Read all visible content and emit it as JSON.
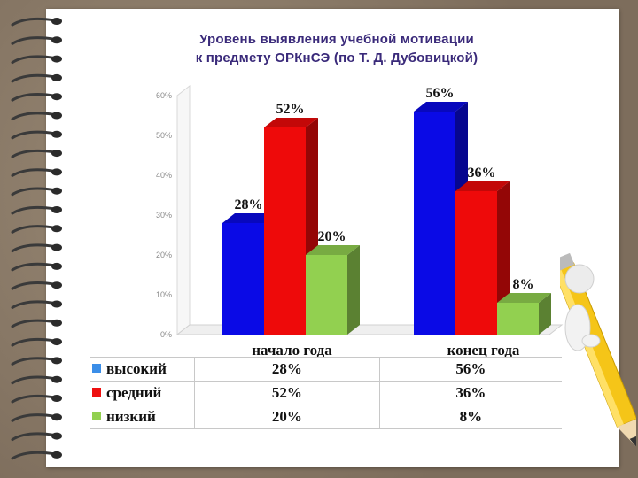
{
  "chart_data": {
    "type": "bar",
    "title_line1": "Уровень выявления учебной мотивации",
    "title_line2": "к предмету ОРКнСЭ (по Т. Д. Дубовицкой)",
    "categories": [
      "начало года",
      "конец года"
    ],
    "ylim": [
      0,
      60
    ],
    "yticks": [
      "0%",
      "10%",
      "20%",
      "30%",
      "40%",
      "50%",
      "60%"
    ],
    "series": [
      {
        "name": "высокий",
        "values": [
          28,
          56
        ],
        "labels": [
          "28%",
          "56%"
        ],
        "color": "#0a0ae6"
      },
      {
        "name": "средний",
        "values": [
          52,
          36
        ],
        "labels": [
          "52%",
          "36%"
        ],
        "color": "#ee0a0a"
      },
      {
        "name": "низкий",
        "values": [
          20,
          8
        ],
        "labels": [
          "20%",
          "8%"
        ],
        "color": "#92d050"
      }
    ],
    "grid": false,
    "legend": "data table below chart"
  }
}
